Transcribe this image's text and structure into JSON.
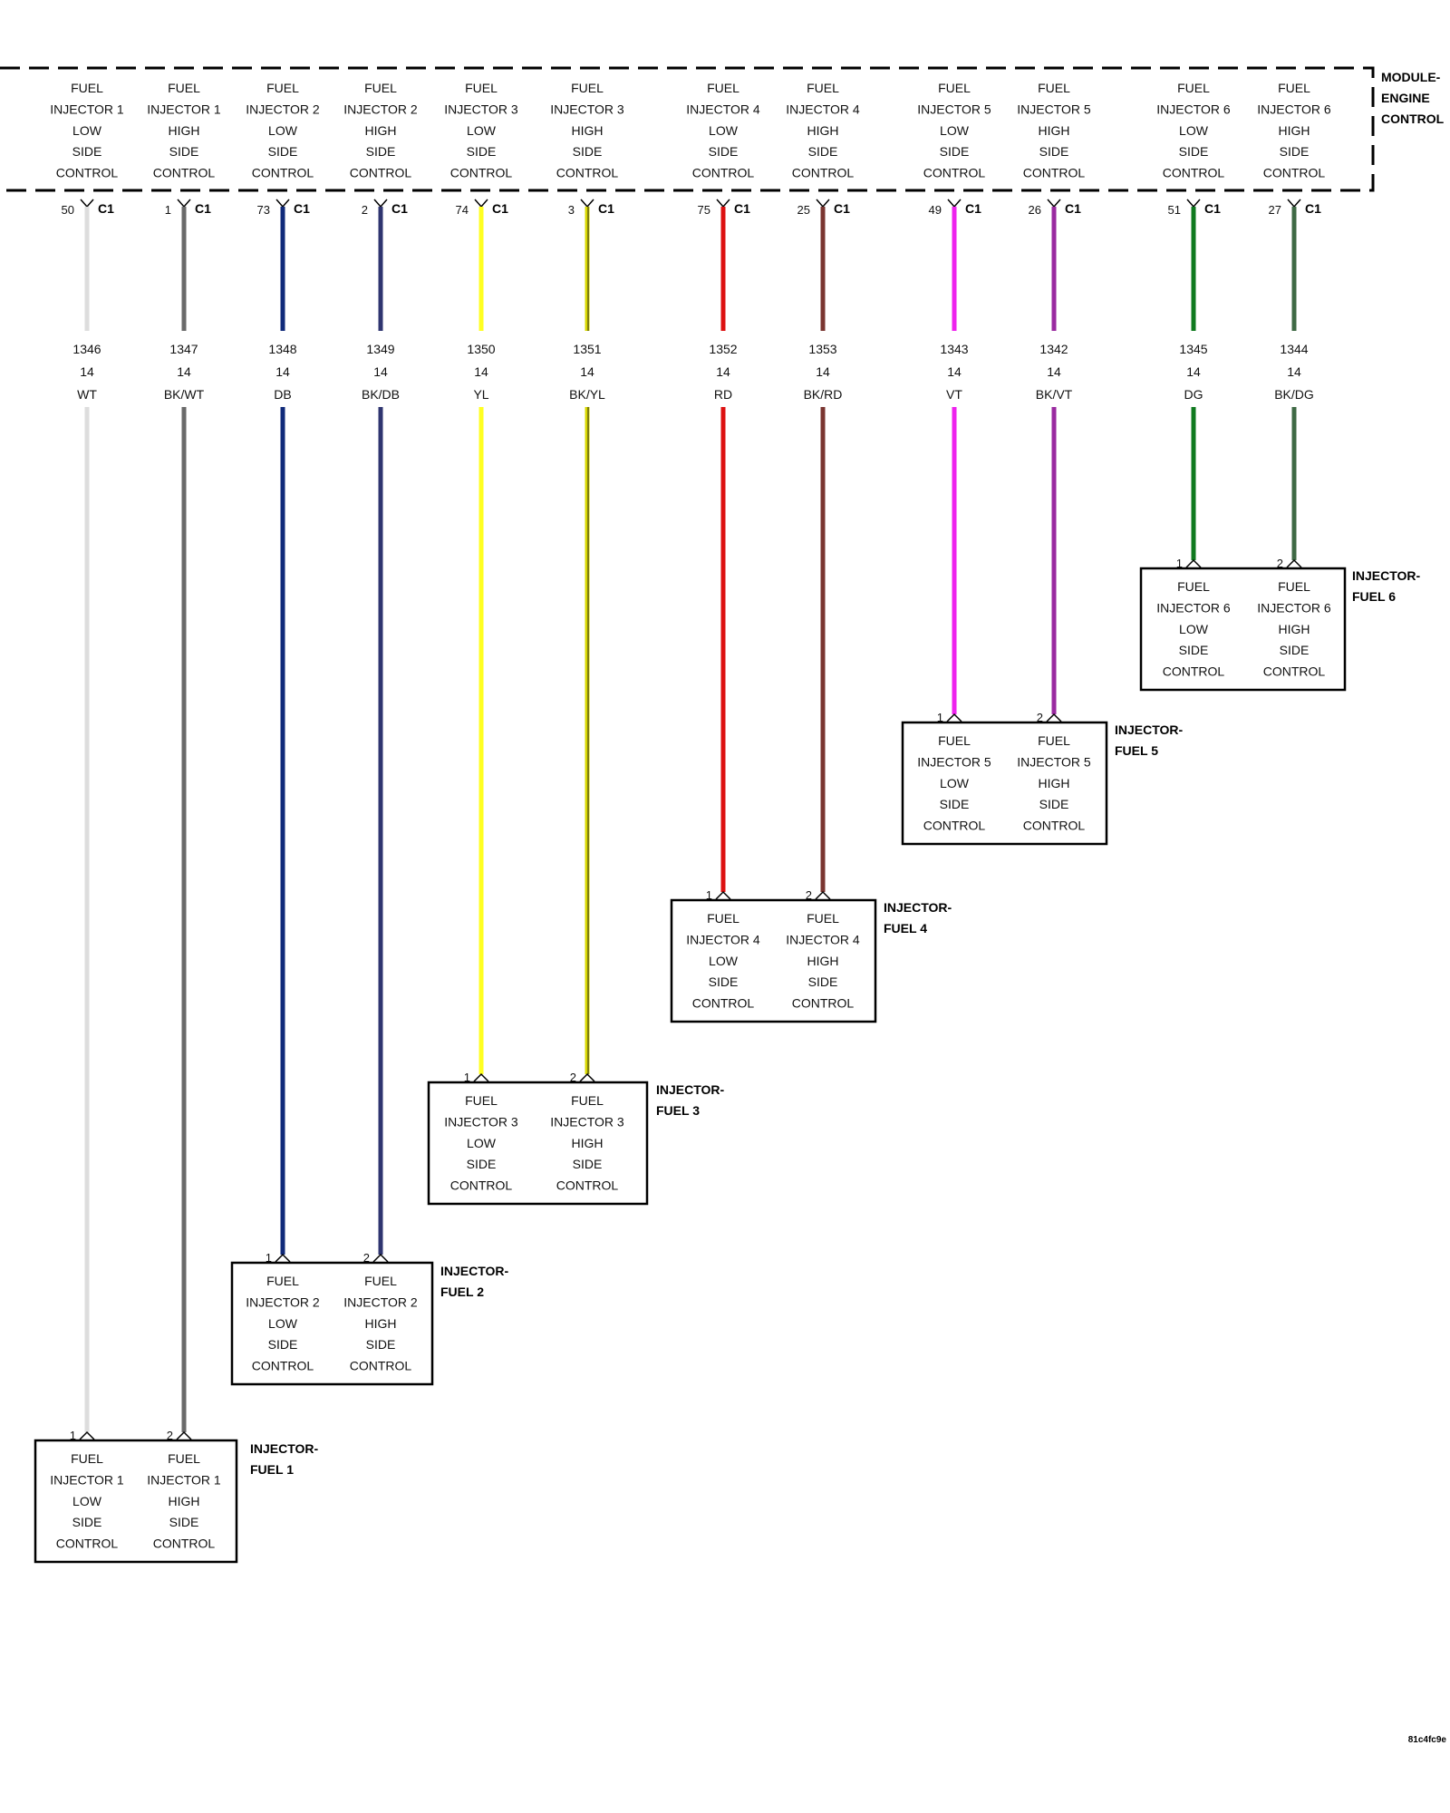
{
  "module": {
    "name_lines": [
      "MODULE-",
      "ENGINE",
      "CONTROL"
    ],
    "connector": "C1"
  },
  "wires": [
    {
      "id": "w1",
      "cavity": "50",
      "circuit": "1346",
      "gauge": "14",
      "color_code": "WT",
      "color": "#dddddd",
      "stripe": null,
      "injector": 1,
      "pin": "1",
      "function": [
        "FUEL",
        "INJECTOR 1",
        "LOW",
        "SIDE",
        "CONTROL"
      ]
    },
    {
      "id": "w2",
      "cavity": "1",
      "circuit": "1347",
      "gauge": "14",
      "color_code": "BK/WT",
      "color": "#6a6a6a",
      "stripe": null,
      "injector": 1,
      "pin": "2",
      "function": [
        "FUEL",
        "INJECTOR 1",
        "HIGH",
        "SIDE",
        "CONTROL"
      ]
    },
    {
      "id": "w3",
      "cavity": "73",
      "circuit": "1348",
      "gauge": "14",
      "color_code": "DB",
      "color": "#102a7a",
      "stripe": null,
      "injector": 2,
      "pin": "1",
      "function": [
        "FUEL",
        "INJECTOR 2",
        "LOW",
        "SIDE",
        "CONTROL"
      ]
    },
    {
      "id": "w4",
      "cavity": "2",
      "circuit": "1349",
      "gauge": "14",
      "color_code": "BK/DB",
      "color": "#2f3570",
      "stripe": null,
      "injector": 2,
      "pin": "2",
      "function": [
        "FUEL",
        "INJECTOR 2",
        "HIGH",
        "SIDE",
        "CONTROL"
      ]
    },
    {
      "id": "w5",
      "cavity": "74",
      "circuit": "1350",
      "gauge": "14",
      "color_code": "YL",
      "color": "#ffff22",
      "stripe": null,
      "injector": 3,
      "pin": "1",
      "function": [
        "FUEL",
        "INJECTOR 3",
        "LOW",
        "SIDE",
        "CONTROL"
      ]
    },
    {
      "id": "w6",
      "cavity": "3",
      "circuit": "1351",
      "gauge": "14",
      "color_code": "BK/YL",
      "color": "#d8d800",
      "stripe": "#222222",
      "injector": 3,
      "pin": "2",
      "function": [
        "FUEL",
        "INJECTOR 3",
        "HIGH",
        "SIDE",
        "CONTROL"
      ]
    },
    {
      "id": "w7",
      "cavity": "75",
      "circuit": "1352",
      "gauge": "14",
      "color_code": "RD",
      "color": "#dd1111",
      "stripe": null,
      "injector": 4,
      "pin": "1",
      "function": [
        "FUEL",
        "INJECTOR 4",
        "LOW",
        "SIDE",
        "CONTROL"
      ]
    },
    {
      "id": "w8",
      "cavity": "25",
      "circuit": "1353",
      "gauge": "14",
      "color_code": "BK/RD",
      "color": "#7a3530",
      "stripe": null,
      "injector": 4,
      "pin": "2",
      "function": [
        "FUEL",
        "INJECTOR 4",
        "HIGH",
        "SIDE",
        "CONTROL"
      ]
    },
    {
      "id": "w9",
      "cavity": "49",
      "circuit": "1343",
      "gauge": "14",
      "color_code": "VT",
      "color": "#ee22ee",
      "stripe": null,
      "injector": 5,
      "pin": "1",
      "function": [
        "FUEL",
        "INJECTOR 5",
        "LOW",
        "SIDE",
        "CONTROL"
      ]
    },
    {
      "id": "w10",
      "cavity": "26",
      "circuit": "1342",
      "gauge": "14",
      "color_code": "BK/VT",
      "color": "#9a2aa0",
      "stripe": null,
      "injector": 5,
      "pin": "2",
      "function": [
        "FUEL",
        "INJECTOR 5",
        "HIGH",
        "SIDE",
        "CONTROL"
      ]
    },
    {
      "id": "w11",
      "cavity": "51",
      "circuit": "1345",
      "gauge": "14",
      "color_code": "DG",
      "color": "#0f7a1f",
      "stripe": null,
      "injector": 6,
      "pin": "1",
      "function": [
        "FUEL",
        "INJECTOR 6",
        "LOW",
        "SIDE",
        "CONTROL"
      ]
    },
    {
      "id": "w12",
      "cavity": "27",
      "circuit": "1344",
      "gauge": "14",
      "color_code": "BK/DG",
      "color": "#3f6a45",
      "stripe": null,
      "injector": 6,
      "pin": "2",
      "function": [
        "FUEL",
        "INJECTOR 6",
        "HIGH",
        "SIDE",
        "CONTROL"
      ]
    }
  ],
  "injectors": [
    {
      "n": 1,
      "name_lines": [
        "INJECTOR-",
        "FUEL 1"
      ]
    },
    {
      "n": 2,
      "name_lines": [
        "INJECTOR-",
        "FUEL 2"
      ]
    },
    {
      "n": 3,
      "name_lines": [
        "INJECTOR-",
        "FUEL 3"
      ]
    },
    {
      "n": 4,
      "name_lines": [
        "INJECTOR-",
        "FUEL 4"
      ]
    },
    {
      "n": 5,
      "name_lines": [
        "INJECTOR-",
        "FUEL 5"
      ]
    },
    {
      "n": 6,
      "name_lines": [
        "INJECTOR-",
        "FUEL 6"
      ]
    }
  ],
  "footer_code": "81c4fc9e"
}
